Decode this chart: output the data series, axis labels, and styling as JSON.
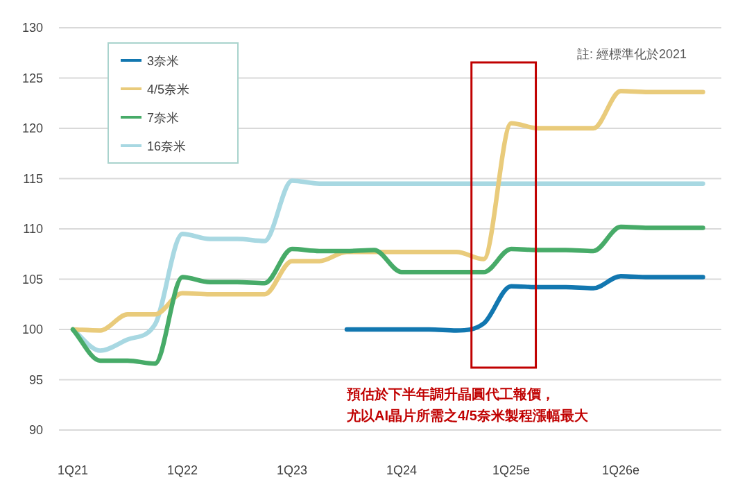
{
  "chart_data": {
    "type": "line",
    "categories": [
      "1Q21",
      null,
      null,
      null,
      "1Q22",
      null,
      null,
      null,
      "1Q23",
      null,
      null,
      null,
      "1Q24",
      null,
      null,
      null,
      "1Q25e",
      null,
      null,
      null,
      "1Q26e",
      null,
      null,
      null
    ],
    "series": [
      {
        "name": "3奈米",
        "color": "#1277b0",
        "values": [
          null,
          null,
          null,
          null,
          null,
          null,
          null,
          null,
          null,
          null,
          100,
          100,
          100,
          100,
          99.9,
          100.6,
          104.3,
          104.2,
          104.2,
          104.1,
          105.3,
          105.2,
          105.2,
          105.2
        ]
      },
      {
        "name": "4/5奈米",
        "color": "#e9cb7b",
        "values": [
          100,
          99.9,
          101.5,
          101.5,
          103.6,
          103.5,
          103.5,
          103.5,
          106.8,
          106.8,
          107.7,
          107.7,
          107.7,
          107.7,
          107.7,
          107,
          120.5,
          120,
          120,
          120,
          123.7,
          123.6,
          123.6,
          123.6
        ]
      },
      {
        "name": "7奈米",
        "color": "#47ab68",
        "values": [
          100,
          96.9,
          96.9,
          96.6,
          105.2,
          104.7,
          104.7,
          104.6,
          108,
          107.8,
          107.8,
          107.9,
          105.7,
          105.7,
          105.7,
          105.7,
          108,
          107.9,
          107.9,
          107.8,
          110.2,
          110.1,
          110.1,
          110.1
        ]
      },
      {
        "name": "16奈米",
        "color": "#a8d8e2",
        "values": [
          100,
          97.9,
          99,
          100.5,
          109.5,
          109,
          109,
          108.8,
          114.8,
          114.5,
          114.5,
          114.5,
          114.5,
          114.5,
          114.5,
          114.5,
          114.5,
          114.5,
          114.5,
          114.5,
          114.5,
          114.5,
          114.5,
          114.5
        ]
      }
    ],
    "ylim": [
      90,
      130
    ],
    "yticks": [
      90,
      95,
      100,
      105,
      110,
      115,
      120,
      125,
      130
    ],
    "grid": "y",
    "legend": "top left",
    "annotations": [
      "註: 經標準化於2021",
      "預估於下半年調升晶圓代工報價，",
      "尤以AI晶片所需之4/5奈米製程漲幅最大"
    ]
  }
}
